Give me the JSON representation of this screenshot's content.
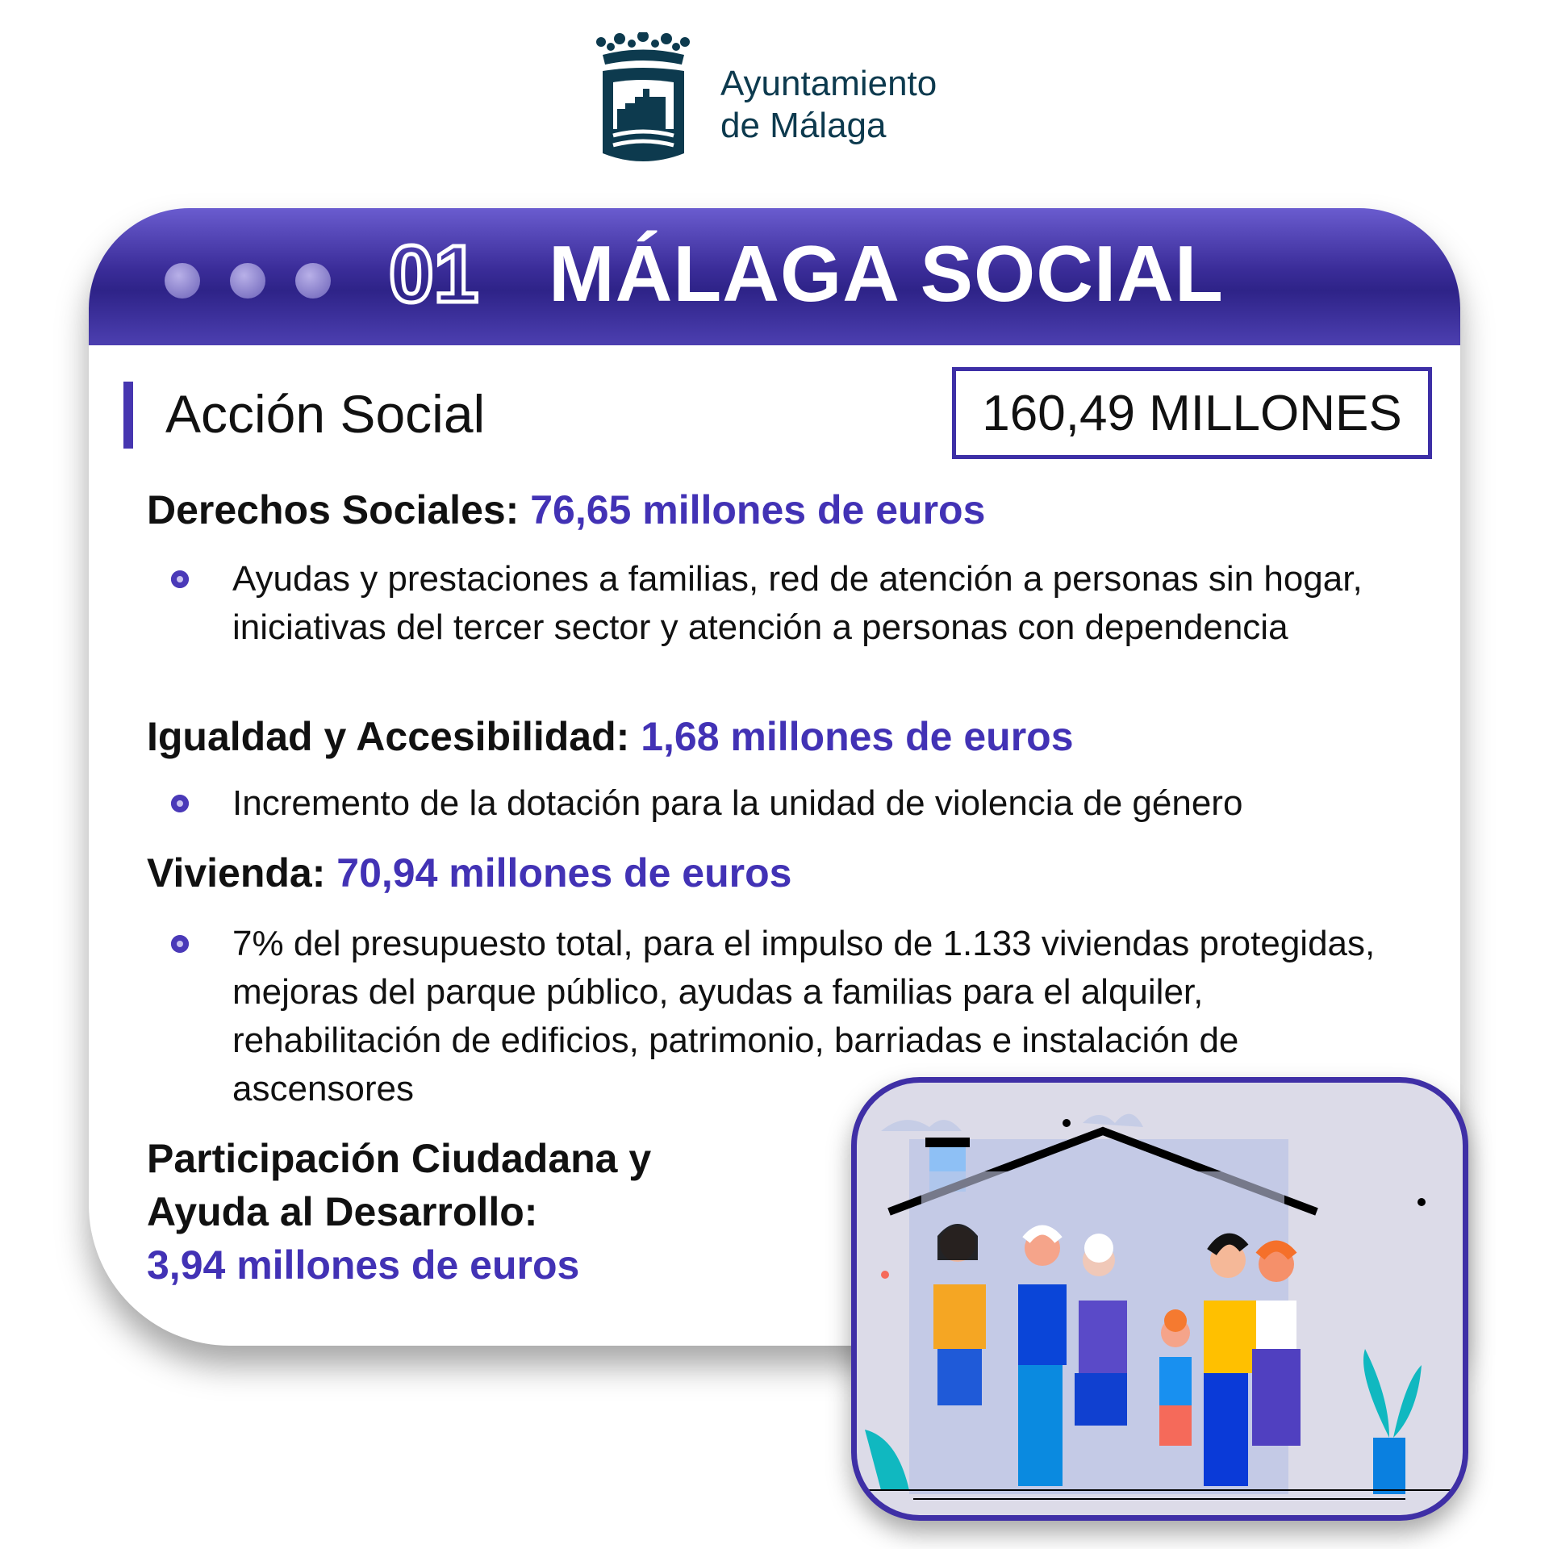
{
  "logo": {
    "line1": "Ayuntamiento",
    "line2": "de Málaga",
    "icon": "coat-of-arms"
  },
  "header": {
    "number": "01",
    "title": "MÁLAGA SOCIAL",
    "color": "#3a2c98"
  },
  "section": {
    "title": "Acción Social",
    "total": "160,49 MILLONES"
  },
  "categories": [
    {
      "label": "Derechos Sociales:",
      "amount": "76,65 millones de euros",
      "bullet": "Ayudas y prestaciones a familias, red de atención a personas sin hogar, iniciativas del tercer sector y atención a personas con dependencia"
    },
    {
      "label": "Igualdad y Accesibilidad:",
      "amount": "1,68 millones de euros",
      "bullet": "Incremento de la dotación para la unidad de violencia de género"
    },
    {
      "label": "Vivienda:",
      "amount": "70,94 millones de euros",
      "bullet": "7% del presupuesto total, para el impulso de 1.133 viviendas protegidas, mejoras del parque público, ayudas a familias para el alquiler, rehabilitación de edificios, patrimonio, barriadas e instalación de ascensores"
    },
    {
      "label_line1": "Participación Ciudadana y",
      "label_line2": "Ayuda al Desarrollo:",
      "amount": "3,94 millones de euros"
    }
  ],
  "colors": {
    "accent": "#4232b5",
    "logo": "#0d3a4e"
  },
  "illustration": "family-under-house-roof"
}
